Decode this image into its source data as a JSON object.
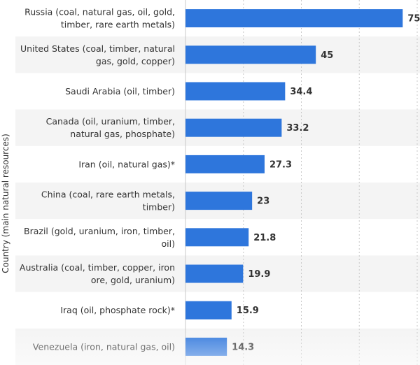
{
  "chart_data": {
    "type": "bar",
    "orientation": "horizontal",
    "ylabel": "Country (main natural resources)",
    "xlim": [
      0,
      80
    ],
    "grid": true,
    "categories": [
      [
        "Russia (coal, natural gas, oil, gold,",
        "timber, rare earth metals)"
      ],
      [
        "United States (coal, timber, natural",
        "gas, gold, copper)"
      ],
      [
        "Saudi Arabia (oil, timber)"
      ],
      [
        "Canada (oil, uranium, timber,",
        "natural gas, phosphate)"
      ],
      [
        "Iran (oil, natural gas)*"
      ],
      [
        "China (coal, rare earth metals,",
        "timber)"
      ],
      [
        "Brazil (gold, uranium, iron, timber,",
        "oil)"
      ],
      [
        "Australia (coal, timber, copper, iron",
        "ore, gold, uranium)"
      ],
      [
        "Iraq (oil, phosphate rock)*"
      ],
      [
        "Venezuela (iron, natural gas, oil)"
      ]
    ],
    "values": [
      75,
      45,
      34.4,
      33.2,
      27.3,
      23,
      21.8,
      19.9,
      15.9,
      14.3
    ],
    "value_labels": [
      "75",
      "45",
      "34.4",
      "33.2",
      "27.3",
      "23",
      "21.8",
      "19.9",
      "15.9",
      "14.3"
    ],
    "colors": {
      "bar": "#2e76dc",
      "alt_row": "#f4f4f4",
      "grid": "#c8c8c8",
      "text": "#333333"
    }
  }
}
